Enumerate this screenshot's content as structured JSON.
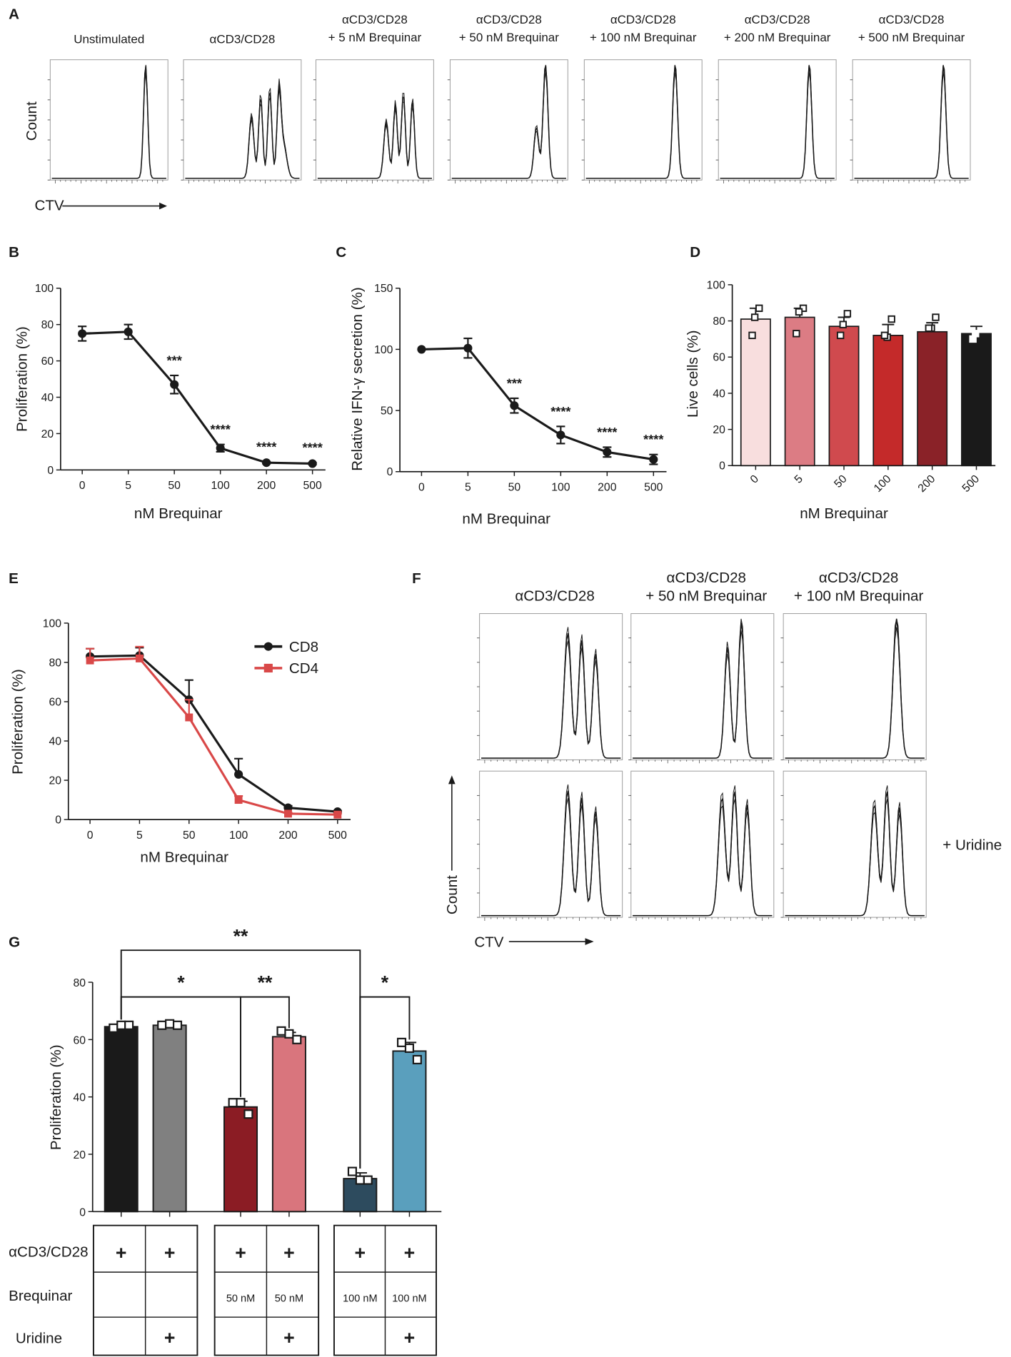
{
  "panel_labels": [
    "A",
    "B",
    "C",
    "D",
    "E",
    "F",
    "G"
  ],
  "colors": {
    "black": "#1a1a1a",
    "gray": "#808080",
    "darkred": "#8b1c24",
    "pink": "#d9757d",
    "navy": "#2d4b5e",
    "teal": "#5a9fbd",
    "cd4red": "#d94848",
    "bar_d": [
      "#f8dede",
      "#dc7c84",
      "#d04a4e",
      "#c42a2a",
      "#8a2228",
      "#1a1a1a"
    ]
  },
  "chart_data": [
    {
      "id": "A",
      "type": "histogram-panels",
      "titles": [
        [
          "Unstimulated"
        ],
        [
          "αCD3/CD28"
        ],
        [
          "αCD3/CD28",
          "+ 5 nM Brequinar"
        ],
        [
          "αCD3/CD28",
          "+ 50 nM Brequinar"
        ],
        [
          "αCD3/CD28",
          "+ 100 nM Brequinar"
        ],
        [
          "αCD3/CD28",
          "+ 200 nM Brequinar"
        ],
        [
          "αCD3/CD28",
          "+ 500 nM Brequinar"
        ]
      ],
      "ylabel": "Count",
      "xlabel": "CTV"
    },
    {
      "id": "B",
      "type": "line",
      "x": [
        "0",
        "5",
        "50",
        "100",
        "200",
        "500"
      ],
      "values": [
        75,
        76,
        47,
        12,
        4,
        3.5
      ],
      "errors": [
        4,
        4,
        5,
        2,
        0.5,
        0.5
      ],
      "stars": [
        "",
        "",
        "***",
        "****",
        "****",
        "****"
      ],
      "ylim": [
        0,
        100
      ],
      "yticks": [
        "0",
        "20",
        "40",
        "60",
        "80",
        "100"
      ],
      "ylabel": "Proliferation (%)",
      "xlabel": "nM Brequinar"
    },
    {
      "id": "C",
      "type": "line",
      "x": [
        "0",
        "5",
        "50",
        "100",
        "200",
        "500"
      ],
      "values": [
        100,
        101,
        54,
        30,
        16,
        10
      ],
      "errors": [
        0,
        8,
        6,
        7,
        4,
        4
      ],
      "stars": [
        "",
        "",
        "***",
        "****",
        "****",
        "****"
      ],
      "ylim": [
        0,
        150
      ],
      "yticks": [
        "0",
        "50",
        "100",
        "150"
      ],
      "ylabel": "Relative IFN-γ secretion (%)",
      "xlabel": "nM Brequinar"
    },
    {
      "id": "D",
      "type": "bar",
      "categories": [
        "0",
        "5",
        "50",
        "100",
        "200",
        "500"
      ],
      "values": [
        81,
        82,
        77,
        72,
        74,
        73
      ],
      "errors": [
        6,
        5,
        5,
        6,
        5,
        4
      ],
      "points": [
        [
          87,
          82,
          72
        ],
        [
          87,
          85,
          73
        ],
        [
          84,
          78,
          72
        ],
        [
          81,
          71,
          72
        ],
        [
          82,
          76,
          76
        ],
        [
          80,
          73,
          70
        ]
      ],
      "ylim": [
        0,
        100
      ],
      "yticks": [
        "0",
        "20",
        "40",
        "60",
        "80",
        "100"
      ],
      "ylabel": "Live cells (%)",
      "xlabel": "nM Brequinar"
    },
    {
      "id": "E",
      "type": "line",
      "x": [
        "0",
        "5",
        "50",
        "100",
        "200",
        "500"
      ],
      "series": [
        {
          "name": "CD8",
          "values": [
            83,
            83.5,
            61,
            23,
            6,
            4
          ],
          "errors": [
            4,
            4,
            10,
            8,
            1,
            0.5
          ]
        },
        {
          "name": "CD4",
          "values": [
            81,
            82,
            52,
            10,
            3,
            2.5
          ],
          "errors": [
            6,
            6,
            9,
            2,
            0.5,
            0.5
          ]
        }
      ],
      "ylim": [
        0,
        100
      ],
      "yticks": [
        "0",
        "20",
        "40",
        "60",
        "80",
        "100"
      ],
      "ylabel": "Proliferation (%)",
      "xlabel": "nM Brequinar"
    },
    {
      "id": "F",
      "type": "histogram-panels",
      "titles": [
        [
          "αCD3/CD28"
        ],
        [
          "αCD3/CD28",
          "+ 50 nM Brequinar"
        ],
        [
          "αCD3/CD28",
          "+ 100 nM Brequinar"
        ]
      ],
      "row_label": "+ Uridine",
      "ylabel": "Count",
      "xlabel": "CTV"
    },
    {
      "id": "G",
      "type": "bar",
      "values": [
        64.5,
        65,
        36.5,
        61,
        11.5,
        56
      ],
      "errors": [
        0.5,
        0.5,
        2,
        1.5,
        2,
        3
      ],
      "points": [
        [
          64,
          65,
          65
        ],
        [
          65,
          65.5,
          65
        ],
        [
          38,
          38,
          34
        ],
        [
          63,
          62,
          60
        ],
        [
          14,
          11,
          11
        ],
        [
          59,
          57,
          53
        ]
      ],
      "ylim": [
        0,
        80
      ],
      "yticks": [
        "0",
        "20",
        "40",
        "60",
        "80"
      ],
      "ylabel": "Proliferation (%)",
      "significance": [
        "**",
        "*",
        "**",
        "*"
      ],
      "table": {
        "rows": [
          "αCD3/CD28",
          "Brequinar",
          "Uridine"
        ],
        "plus": "+",
        "brequinar": [
          "",
          "",
          "50 nM",
          "50 nM",
          "100 nM",
          "100 nM"
        ],
        "stim": [
          "+",
          "+",
          "+",
          "+",
          "+",
          "+"
        ],
        "uridine": [
          "",
          "+",
          "",
          "+",
          "",
          "+"
        ]
      }
    }
  ]
}
